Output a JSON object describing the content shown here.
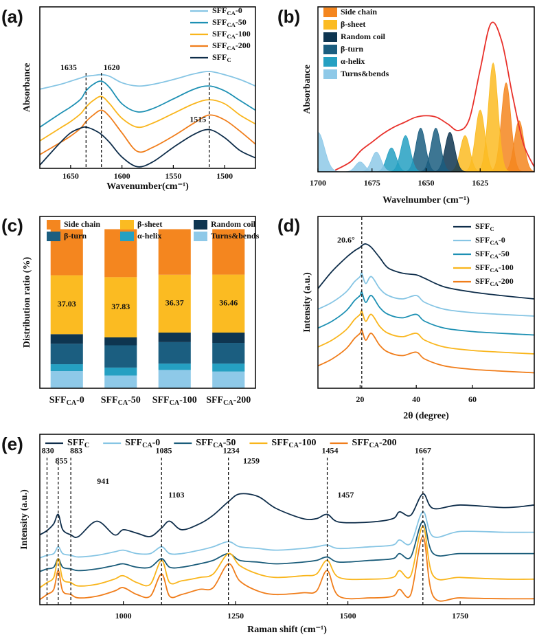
{
  "chart_data": [
    {
      "type": "line",
      "label": "(a)",
      "xlabel": "Wavenumber(cm⁻¹)",
      "ylabel": "Absorbance",
      "xlim": [
        1680,
        1470
      ],
      "ylim": [
        0,
        10
      ],
      "xticks": [
        1650,
        1600,
        1550,
        1500
      ],
      "legend": "upper right",
      "x": [
        1680,
        1660,
        1650,
        1640,
        1635,
        1628,
        1620,
        1612,
        1600,
        1585,
        1570,
        1550,
        1530,
        1515,
        1500,
        1485,
        1470
      ],
      "series": [
        {
          "name": "SFFCA-0",
          "color": "#86c5e4",
          "values": [
            4.9,
            5.2,
            5.4,
            5.6,
            5.7,
            5.75,
            5.8,
            5.7,
            5.3,
            5.1,
            5.2,
            5.5,
            5.85,
            6.0,
            5.8,
            5.5,
            5.1
          ]
        },
        {
          "name": "SFFCA-50",
          "color": "#1d90b3",
          "values": [
            2.55,
            3.4,
            3.8,
            4.3,
            4.8,
            5.2,
            5.4,
            5.0,
            4.0,
            3.5,
            3.7,
            4.3,
            4.9,
            5.1,
            4.8,
            4.2,
            3.6
          ]
        },
        {
          "name": "SFFCA-100",
          "color": "#f9b51b",
          "values": [
            1.7,
            2.5,
            2.9,
            3.4,
            3.8,
            4.2,
            4.45,
            4.0,
            3.1,
            2.55,
            2.8,
            3.4,
            4.0,
            4.25,
            4.0,
            3.3,
            2.75
          ]
        },
        {
          "name": "SFFCA-200",
          "color": "#f07d1a",
          "values": [
            0.85,
            1.6,
            2.0,
            2.5,
            2.9,
            3.3,
            3.6,
            3.2,
            2.2,
            1.05,
            1.3,
            2.0,
            2.8,
            3.3,
            3.0,
            2.3,
            1.5
          ]
        },
        {
          "name": "SFFC",
          "color": "#0e2d4a",
          "values": [
            0.2,
            1.6,
            2.2,
            2.5,
            2.55,
            2.4,
            2.1,
            1.6,
            0.7,
            0.1,
            0.4,
            1.3,
            2.1,
            2.4,
            1.9,
            1.1,
            0.65
          ]
        }
      ],
      "vlines": [
        1635,
        1620,
        1515
      ],
      "annotations": [
        {
          "x": 1652,
          "y": 6.2,
          "text": "1635"
        },
        {
          "x": 1610,
          "y": 6.2,
          "text": "1620"
        },
        {
          "x": 1526,
          "y": 3.0,
          "text": "1515"
        }
      ]
    },
    {
      "type": "peaks",
      "label": "(b)",
      "xlabel": "Wavelnumber (cm⁻¹)",
      "ylabel": "Absorbance",
      "xlim": [
        1700,
        1600
      ],
      "ylim": [
        0,
        10
      ],
      "xticks": [
        1700,
        1675,
        1650,
        1625
      ],
      "legend": "upper left",
      "series": [
        {
          "name": "Side chain",
          "color": "#f4861f",
          "peaks": [
            {
              "center": 1613,
              "height": 5.4,
              "width": 2.2
            },
            {
              "center": 1607,
              "height": 3.1,
              "width": 2.2
            }
          ]
        },
        {
          "name": "β-sheet",
          "color": "#fbbb22",
          "peaks": [
            {
              "center": 1632,
              "height": 2.2,
              "width": 2.2
            },
            {
              "center": 1625,
              "height": 3.75,
              "width": 2.2
            },
            {
              "center": 1619,
              "height": 6.6,
              "width": 2.2
            }
          ]
        },
        {
          "name": "Random coil",
          "color": "#0e3550",
          "peaks": [
            {
              "center": 1639,
              "height": 2.4,
              "width": 2.2
            }
          ]
        },
        {
          "name": "β-turn",
          "color": "#1b5e80",
          "peaks": [
            {
              "center": 1652.5,
              "height": 2.65,
              "width": 2.2
            },
            {
              "center": 1645.5,
              "height": 2.65,
              "width": 2.2
            }
          ]
        },
        {
          "name": "α-helix",
          "color": "#25a0c2",
          "peaks": [
            {
              "center": 1666,
              "height": 1.45,
              "width": 2.2
            },
            {
              "center": 1659.5,
              "height": 2.2,
              "width": 2.2
            }
          ]
        },
        {
          "name": "Turns&bends",
          "color": "#8ec9e8",
          "peaks": [
            {
              "center": 1700,
              "height": 2.4,
              "width": 3
            },
            {
              "center": 1680.5,
              "height": 0.6,
              "width": 2.2
            },
            {
              "center": 1673,
              "height": 1.2,
              "width": 2.2
            }
          ]
        }
      ],
      "fit": {
        "color": "#e8302a",
        "x": [
          1692,
          1685,
          1680,
          1675,
          1670,
          1665,
          1660,
          1655,
          1650,
          1645,
          1640,
          1635,
          1630,
          1625,
          1620,
          1615,
          1610,
          1605,
          1600
        ],
        "values": [
          0.1,
          0.6,
          1.3,
          1.8,
          2.3,
          2.7,
          3.0,
          3.3,
          3.4,
          3.3,
          2.9,
          2.5,
          3.2,
          6.2,
          9.0,
          7.9,
          4.6,
          1.7,
          0.3
        ]
      }
    },
    {
      "type": "bar",
      "label": "(c)",
      "ylabel": "Distribution ratio (%)",
      "ylim": [
        0,
        108
      ],
      "legend": "upper center",
      "categories": [
        "SFFCA-0",
        "SFFCA-50",
        "SFFCA-100",
        "SFFCA-200"
      ],
      "series": [
        {
          "name": "Side chain",
          "color": "#f4861f",
          "values": [
            28.97,
            30.17,
            28.63,
            28.54
          ]
        },
        {
          "name": "β-sheet",
          "color": "#fbbb22",
          "values": [
            37.03,
            37.83,
            36.37,
            36.46
          ],
          "labels": true
        },
        {
          "name": "Random coil",
          "color": "#0e3550",
          "values": [
            6.0,
            5.0,
            6.0,
            6.5
          ]
        },
        {
          "name": "β-turn",
          "color": "#1b5e80",
          "values": [
            12.9,
            14.0,
            13.5,
            13.0
          ]
        },
        {
          "name": "α-helix",
          "color": "#25a0c2",
          "values": [
            4.3,
            5.0,
            4.0,
            5.0
          ]
        },
        {
          "name": "Turns&bends",
          "color": "#8ec9e8",
          "values": [
            10.8,
            8.0,
            11.5,
            10.5
          ]
        }
      ]
    },
    {
      "type": "line",
      "label": "(d)",
      "xlabel": "2θ (degree)",
      "ylabel": "Intensity (a.u.)",
      "xlim": [
        5,
        82
      ],
      "ylim": [
        0,
        10
      ],
      "xticks": [
        20,
        40,
        60
      ],
      "legend": "upper right",
      "x": [
        5,
        10,
        15,
        18,
        20,
        20.6,
        22,
        24,
        27,
        30,
        35,
        40,
        43,
        50,
        60,
        70,
        82
      ],
      "series": [
        {
          "name": "SFFC",
          "color": "#0e2d4a",
          "values": [
            5.8,
            6.8,
            7.6,
            8.0,
            8.2,
            8.3,
            8.4,
            8.2,
            7.6,
            7.0,
            6.7,
            6.6,
            6.4,
            5.9,
            5.6,
            5.4,
            5.2
          ]
        },
        {
          "name": "SFFCA-0",
          "color": "#86c5e4",
          "values": [
            4.6,
            5.0,
            5.6,
            6.2,
            6.5,
            6.7,
            6.1,
            6.5,
            5.8,
            5.4,
            5.2,
            5.4,
            5.0,
            4.6,
            4.4,
            4.3,
            4.2
          ]
        },
        {
          "name": "SFFCA-50",
          "color": "#1d90b3",
          "values": [
            3.5,
            3.9,
            4.5,
            5.1,
            5.4,
            5.6,
            5.0,
            5.4,
            4.7,
            4.3,
            4.1,
            4.3,
            3.9,
            3.5,
            3.3,
            3.2,
            3.1
          ]
        },
        {
          "name": "SFFCA-100",
          "color": "#f9b51b",
          "values": [
            2.4,
            2.8,
            3.4,
            4.0,
            4.3,
            4.5,
            3.9,
            4.3,
            3.6,
            3.2,
            3.0,
            3.2,
            2.8,
            2.4,
            2.2,
            2.1,
            2.0
          ]
        },
        {
          "name": "SFFCA-200",
          "color": "#f07d1a",
          "values": [
            1.3,
            1.7,
            2.3,
            2.9,
            3.2,
            3.4,
            2.8,
            3.2,
            2.5,
            2.1,
            1.9,
            2.1,
            1.7,
            1.3,
            1.1,
            1.0,
            0.9
          ]
        }
      ],
      "vlines": [
        20.6
      ],
      "annotations": [
        {
          "x": 15,
          "y": 8.6,
          "text": "20.6°"
        }
      ]
    },
    {
      "type": "line",
      "label": "(e)",
      "xlabel": "Raman shift (cm⁻¹)",
      "ylabel": "Intensity (a.u.)",
      "xlim": [
        814,
        1915
      ],
      "ylim": [
        0,
        10
      ],
      "xticks": [
        1000,
        1250,
        1500,
        1750
      ],
      "legend": "upper center",
      "x": [
        814,
        830,
        845,
        855,
        865,
        883,
        900,
        941,
        980,
        1000,
        1030,
        1060,
        1085,
        1103,
        1130,
        1170,
        1200,
        1234,
        1259,
        1300,
        1340,
        1400,
        1430,
        1454,
        1480,
        1550,
        1600,
        1615,
        1640,
        1667,
        1690,
        1750,
        1850,
        1915
      ],
      "series": [
        {
          "name": "SFFC",
          "color": "#0e2d4a",
          "values": [
            4.1,
            4.35,
            4.75,
            5.3,
            4.4,
            4.1,
            4.0,
            4.9,
            4.1,
            4.4,
            4.2,
            4.0,
            4.5,
            4.9,
            4.4,
            4.75,
            5.25,
            6.05,
            6.5,
            6.35,
            5.65,
            5.05,
            5.05,
            5.3,
            4.85,
            4.85,
            5.05,
            5.45,
            5.25,
            6.5,
            5.65,
            5.85,
            5.7,
            5.85
          ]
        },
        {
          "name": "SFFCA-0",
          "color": "#86c5e4",
          "values": [
            2.75,
            2.9,
            3.0,
            3.4,
            3.0,
            2.9,
            2.8,
            2.9,
            3.1,
            3.2,
            3.0,
            3.0,
            3.4,
            3.0,
            3.0,
            3.2,
            3.4,
            3.7,
            3.4,
            3.3,
            3.2,
            3.3,
            3.4,
            3.5,
            3.3,
            3.4,
            3.5,
            3.8,
            3.6,
            5.45,
            4.0,
            4.3,
            4.25,
            4.25
          ]
        },
        {
          "name": "SFFCA-50",
          "color": "#1a5c7a",
          "values": [
            1.95,
            2.1,
            2.2,
            2.7,
            2.2,
            2.1,
            2.0,
            2.1,
            2.3,
            2.4,
            2.2,
            2.2,
            2.7,
            2.2,
            2.2,
            2.4,
            2.6,
            3.0,
            2.6,
            2.5,
            2.4,
            2.5,
            2.6,
            2.8,
            2.5,
            2.6,
            2.7,
            3.0,
            2.8,
            4.9,
            3.0,
            3.0,
            3.0,
            3.0
          ]
        },
        {
          "name": "SFFCA-100",
          "color": "#f9b51b",
          "values": [
            1.0,
            1.3,
            1.6,
            2.7,
            1.5,
            1.3,
            1.1,
            1.2,
            1.5,
            1.7,
            1.3,
            1.2,
            2.6,
            1.3,
            1.4,
            1.6,
            1.8,
            3.0,
            2.3,
            1.8,
            1.6,
            1.7,
            1.8,
            2.6,
            1.6,
            1.5,
            1.6,
            2.0,
            1.7,
            4.6,
            1.7,
            1.6,
            1.5,
            1.5
          ]
        },
        {
          "name": "SFFCA-200",
          "color": "#f07d1a",
          "values": [
            0.3,
            0.6,
            0.9,
            2.0,
            0.8,
            0.6,
            0.4,
            0.5,
            0.8,
            1.0,
            0.6,
            0.5,
            1.8,
            0.5,
            0.6,
            0.9,
            1.0,
            2.4,
            1.4,
            0.8,
            0.6,
            0.7,
            0.8,
            2.0,
            0.5,
            0.4,
            0.5,
            0.9,
            0.6,
            4.0,
            0.5,
            0.4,
            0.35,
            0.35
          ]
        }
      ],
      "vlines": [
        830,
        855,
        883,
        1085,
        1234,
        1454,
        1667
      ],
      "annotations": [
        {
          "x": 832,
          "y": 9.0,
          "text": "830"
        },
        {
          "x": 862,
          "y": 8.4,
          "text": "855"
        },
        {
          "x": 895,
          "y": 9.0,
          "text": "883"
        },
        {
          "x": 955,
          "y": 7.2,
          "text": "941"
        },
        {
          "x": 1090,
          "y": 9.0,
          "text": "1085"
        },
        {
          "x": 1118,
          "y": 6.4,
          "text": "1103"
        },
        {
          "x": 1240,
          "y": 9.0,
          "text": "1234"
        },
        {
          "x": 1285,
          "y": 8.4,
          "text": "1259"
        },
        {
          "x": 1460,
          "y": 9.0,
          "text": "1454"
        },
        {
          "x": 1495,
          "y": 6.4,
          "text": "1457"
        },
        {
          "x": 1667,
          "y": 9.0,
          "text": "1667"
        }
      ]
    }
  ]
}
